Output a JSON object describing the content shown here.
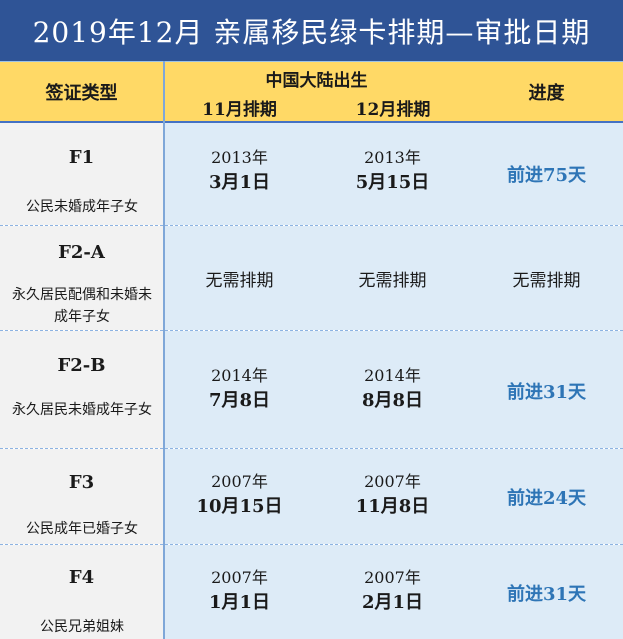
{
  "title": "2019年12月  亲属移民绿卡排期—审批日期",
  "header": {
    "visa_type": "签证类型",
    "china_born": "中国大陆出生",
    "nov": "11月排期",
    "dec": "12月排期",
    "progress": "进度"
  },
  "rows": [
    {
      "code": "F1",
      "desc": "公民未婚成年子女",
      "nov_year": "2013年",
      "nov_date": "3月1日",
      "dec_year": "2013年",
      "dec_date": "5月15日",
      "progress": "前进75天"
    },
    {
      "code": "F2-A",
      "desc": "永久居民配偶和未婚未成年子女",
      "nov_plain": "无需排期",
      "dec_plain": "无需排期",
      "progress": "无需排期"
    },
    {
      "code": "F2-B",
      "desc": "永久居民未婚成年子女",
      "nov_year": "2014年",
      "nov_date": "7月8日",
      "dec_year": "2014年",
      "dec_date": "8月8日",
      "progress": "前进31天"
    },
    {
      "code": "F3",
      "desc": "公民成年已婚子女",
      "nov_year": "2007年",
      "nov_date": "10月15日",
      "dec_year": "2007年",
      "dec_date": "11月8日",
      "progress": "前进24天"
    },
    {
      "code": "F4",
      "desc": "公民兄弟姐妹",
      "nov_year": "2007年",
      "nov_date": "1月1日",
      "dec_year": "2007年",
      "dec_date": "2月1日",
      "progress": "前进31天"
    }
  ],
  "colors": {
    "title_bg": "#2f5496",
    "header_bg": "#ffd966",
    "data_bg": "#ddebf7",
    "type_bg": "#f2f2f2",
    "progress_text": "#2e75b6"
  }
}
